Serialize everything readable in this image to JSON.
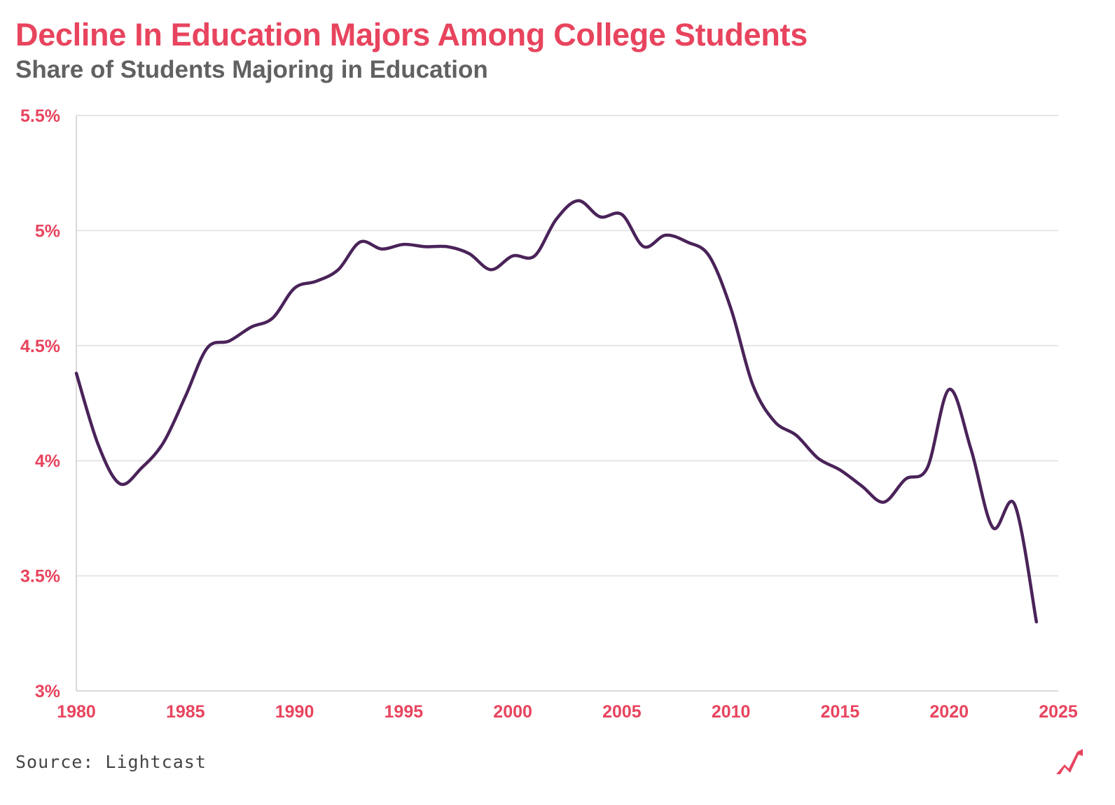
{
  "chart_data": {
    "type": "line",
    "title": "Decline In Education Majors Among College Students",
    "subtitle": "Share of Students Majoring in Education",
    "xlabel": "",
    "ylabel": "",
    "xlim": [
      1980,
      2025
    ],
    "ylim": [
      3.0,
      5.5
    ],
    "x_ticks": [
      1980,
      1985,
      1990,
      1995,
      2000,
      2005,
      2010,
      2015,
      2020,
      2025
    ],
    "x_tick_labels": [
      "1980",
      "1985",
      "1990",
      "1995",
      "2000",
      "2005",
      "2010",
      "2015",
      "2020",
      "2025"
    ],
    "y_ticks": [
      3.0,
      3.5,
      4.0,
      4.5,
      5.0,
      5.5
    ],
    "y_tick_labels": [
      "3%",
      "3.5%",
      "4%",
      "4.5%",
      "5%",
      "5.5%"
    ],
    "grid": "horizontal",
    "line_color": "#4a2359",
    "accent_color": "#e8445e",
    "x": [
      1980,
      1981,
      1982,
      1983,
      1984,
      1985,
      1986,
      1987,
      1988,
      1989,
      1990,
      1991,
      1992,
      1993,
      1994,
      1995,
      1996,
      1997,
      1998,
      1999,
      2000,
      2001,
      2002,
      2003,
      2004,
      2005,
      2006,
      2007,
      2008,
      2009,
      2010,
      2011,
      2012,
      2013,
      2014,
      2015,
      2016,
      2017,
      2018,
      2019,
      2020,
      2021,
      2022,
      2023,
      2024
    ],
    "values": [
      4.38,
      4.07,
      3.9,
      3.97,
      4.08,
      4.28,
      4.49,
      4.52,
      4.58,
      4.62,
      4.75,
      4.78,
      4.83,
      4.95,
      4.92,
      4.94,
      4.93,
      4.93,
      4.9,
      4.83,
      4.89,
      4.89,
      5.05,
      5.13,
      5.06,
      5.07,
      4.93,
      4.98,
      4.95,
      4.89,
      4.66,
      4.33,
      4.17,
      4.11,
      4.01,
      3.96,
      3.89,
      3.82,
      3.92,
      3.97,
      4.31,
      4.05,
      3.71,
      3.81,
      3.3
    ]
  },
  "source": "Source: Lightcast",
  "logo_icon": "lightcast-logo-icon"
}
